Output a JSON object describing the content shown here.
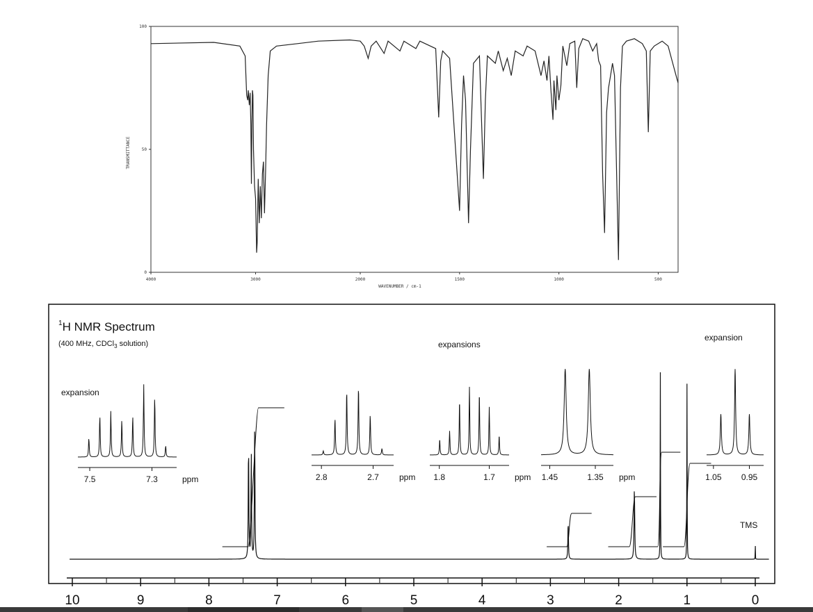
{
  "chart_data": [
    {
      "type": "line",
      "xlabel": "WAVENUMBER / cm-1",
      "ylabel": "TRANSMITTANCE",
      "xlim": [
        4000,
        400
      ],
      "ylim": [
        0,
        100
      ],
      "x_ticks": [
        "4000",
        "3000",
        "2000",
        "1500",
        "1000",
        "500"
      ],
      "y_ticks": [
        "100",
        "50",
        "0"
      ],
      "grid": false,
      "series": [
        {
          "values": [
            [
              4000,
              93
            ],
            [
              3400,
              93.5
            ],
            [
              3150,
              92
            ],
            [
              3100,
              88
            ],
            [
              3085,
              72
            ],
            [
              3075,
              70
            ],
            [
              3070,
              74
            ],
            [
              3060,
              68
            ],
            [
              3052,
              73
            ],
            [
              3045,
              60
            ],
            [
              3040,
              36
            ],
            [
              3035,
              60
            ],
            [
              3030,
              74
            ],
            [
              3025,
              72
            ],
            [
              3020,
              50
            ],
            [
              3010,
              35
            ],
            [
              3000,
              30
            ],
            [
              2990,
              8
            ],
            [
              2985,
              12
            ],
            [
              2975,
              38
            ],
            [
              2965,
              20
            ],
            [
              2955,
              35
            ],
            [
              2945,
              22
            ],
            [
              2935,
              40
            ],
            [
              2925,
              45
            ],
            [
              2915,
              24
            ],
            [
              2905,
              40
            ],
            [
              2895,
              60
            ],
            [
              2880,
              80
            ],
            [
              2860,
              90
            ],
            [
              2800,
              92
            ],
            [
              2600,
              93
            ],
            [
              2400,
              94
            ],
            [
              2100,
              94.5
            ],
            [
              2000,
              94
            ],
            [
              1980,
              92
            ],
            [
              1960,
              87
            ],
            [
              1945,
              92
            ],
            [
              1920,
              94
            ],
            [
              1880,
              89
            ],
            [
              1860,
              94
            ],
            [
              1800,
              90
            ],
            [
              1780,
              94
            ],
            [
              1720,
              91
            ],
            [
              1700,
              94
            ],
            [
              1620,
              91
            ],
            [
              1605,
              63
            ],
            [
              1595,
              86
            ],
            [
              1585,
              90
            ],
            [
              1550,
              87
            ],
            [
              1500,
              25
            ],
            [
              1490,
              60
            ],
            [
              1480,
              80
            ],
            [
              1470,
              70
            ],
            [
              1455,
              20
            ],
            [
              1445,
              50
            ],
            [
              1430,
              85
            ],
            [
              1400,
              88
            ],
            [
              1380,
              38
            ],
            [
              1370,
              70
            ],
            [
              1360,
              88
            ],
            [
              1320,
              85
            ],
            [
              1305,
              90
            ],
            [
              1280,
              82
            ],
            [
              1260,
              87
            ],
            [
              1240,
              80
            ],
            [
              1220,
              90
            ],
            [
              1180,
              88
            ],
            [
              1160,
              92
            ],
            [
              1120,
              90
            ],
            [
              1090,
              80
            ],
            [
              1075,
              86
            ],
            [
              1060,
              78
            ],
            [
              1050,
              88
            ],
            [
              1040,
              74
            ],
            [
              1030,
              62
            ],
            [
              1025,
              78
            ],
            [
              1015,
              66
            ],
            [
              1010,
              80
            ],
            [
              1000,
              70
            ],
            [
              990,
              76
            ],
            [
              980,
              92
            ],
            [
              960,
              84
            ],
            [
              945,
              93
            ],
            [
              920,
              94
            ],
            [
              910,
              75
            ],
            [
              900,
              91
            ],
            [
              880,
              95
            ],
            [
              850,
              94
            ],
            [
              830,
              90
            ],
            [
              810,
              93
            ],
            [
              800,
              86
            ],
            [
              790,
              84
            ],
            [
              780,
              40
            ],
            [
              770,
              16
            ],
            [
              760,
              65
            ],
            [
              750,
              75
            ],
            [
              740,
              80
            ],
            [
              730,
              85
            ],
            [
              720,
              80
            ],
            [
              700,
              5
            ],
            [
              690,
              75
            ],
            [
              680,
              92
            ],
            [
              660,
              94
            ],
            [
              620,
              95
            ],
            [
              580,
              93
            ],
            [
              560,
              90
            ],
            [
              550,
              57
            ],
            [
              540,
              90
            ],
            [
              520,
              92
            ],
            [
              480,
              94
            ],
            [
              450,
              92
            ],
            [
              430,
              86
            ],
            [
              410,
              80
            ],
            [
              400,
              77
            ]
          ]
        }
      ]
    },
    {
      "type": "line",
      "title": "H NMR Spectrum",
      "title_sup": "1",
      "subtitle_pre": "(400 MHz, CDCl",
      "subtitle_sub": "3",
      "subtitle_post": " solution)",
      "xlabel": "",
      "xlim": [
        10,
        0
      ],
      "x_ticks": [
        "10",
        "9",
        "8",
        "7",
        "6",
        "5",
        "4",
        "3",
        "2",
        "1",
        "0"
      ],
      "annotations": [
        "expansion",
        "expansions",
        "expansion",
        "TMS"
      ],
      "peaks": [
        {
          "shift": 7.42,
          "height": 0.6,
          "width": 0.03
        },
        {
          "shift": 7.38,
          "height": 0.55,
          "width": 0.03
        },
        {
          "shift": 7.33,
          "height": 0.7,
          "width": 0.03
        },
        {
          "shift": 2.74,
          "height": 0.2,
          "width": 0.03
        },
        {
          "shift": 1.77,
          "height": 0.38,
          "width": 0.035
        },
        {
          "shift": 1.39,
          "height": 0.98,
          "width": 0.015
        },
        {
          "shift": 1.0,
          "height": 0.92,
          "width": 0.015
        },
        {
          "shift": 0.0,
          "height": 0.08,
          "width": 0.01
        }
      ],
      "integrals": [
        {
          "from": 7.6,
          "to": 7.1,
          "rise": 0.25
        },
        {
          "from": 2.85,
          "to": 2.6,
          "rise": 0.06
        },
        {
          "from": 1.95,
          "to": 1.65,
          "rise": 0.09
        },
        {
          "from": 1.5,
          "to": 1.3,
          "rise": 0.17
        },
        {
          "from": 1.15,
          "to": 0.85,
          "rise": 0.15
        }
      ],
      "expansions": [
        {
          "ticks": [
            "7.5",
            "7.3"
          ],
          "unit": "ppm",
          "lines": [
            0.25,
            0.55,
            0.6,
            0.5,
            0.55,
            0.95,
            0.8,
            0.15
          ]
        },
        {
          "ticks": [
            "2.8",
            "2.7"
          ],
          "unit": "ppm",
          "lines": [
            0.05,
            0.45,
            0.8,
            0.85,
            0.5,
            0.08
          ]
        },
        {
          "ticks": [
            "1.8",
            "1.7"
          ],
          "unit": "ppm",
          "lines": [
            0.2,
            0.3,
            0.7,
            0.85,
            0.8,
            0.6,
            0.25
          ]
        },
        {
          "ticks": [
            "1.45",
            "1.35"
          ],
          "unit": "ppm",
          "lines": [
            0.95,
            0.95
          ]
        },
        {
          "ticks": [
            "1.05",
            "0.95"
          ],
          "unit": "",
          "lines": [
            0.45,
            0.95,
            0.45
          ]
        }
      ]
    }
  ]
}
